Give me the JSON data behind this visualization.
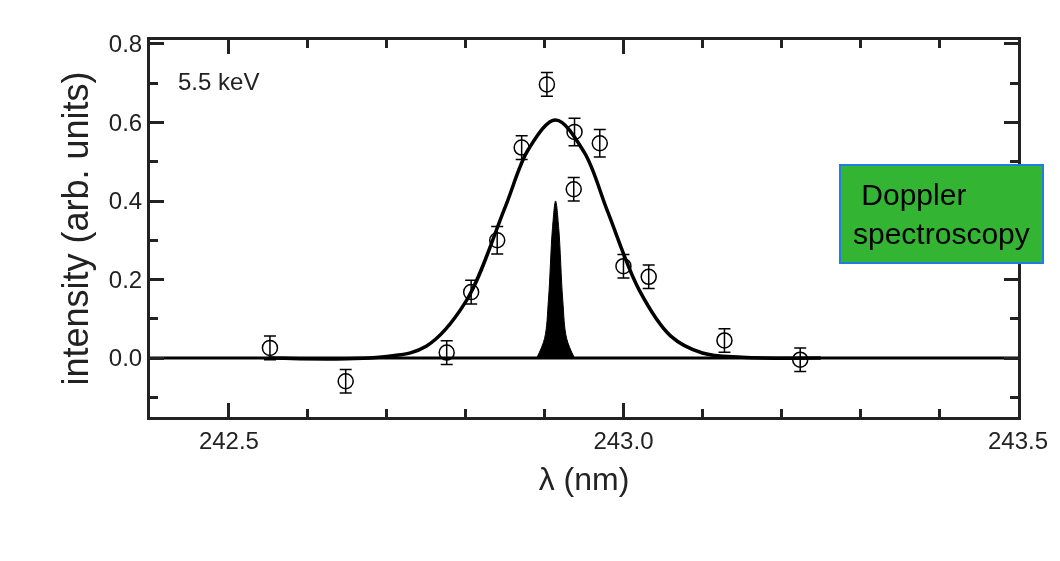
{
  "chart_data": {
    "type": "scatter",
    "xlabel": "λ (nm)",
    "ylabel": "intensity (arb. units)",
    "xlim": [
      242.4,
      243.5
    ],
    "xticks": [
      242.5,
      {
        "value": 243.0,
        "label": "243.0"
      },
      243.5
    ],
    "ylim": [
      -0.15,
      0.81
    ],
    "yticks": [
      {
        "value": 0,
        "label": "0.0"
      },
      0.2,
      0.4,
      0.6,
      0.8
    ],
    "grid": false,
    "marker": "circle",
    "ref_lines": [
      {
        "axis": "y",
        "value": 0,
        "color": "#000000",
        "line_style": "solid"
      }
    ],
    "annotations": [
      "5.5 keV",
      "Doppler spectroscopy"
    ],
    "series": [
      {
        "color": "#000000",
        "x": [
          242.552,
          242.648,
          242.776,
          242.807,
          242.84,
          242.871,
          242.903,
          242.938,
          242.937,
          242.97,
          243.0,
          243.032,
          243.128,
          243.224
        ],
        "values": [
          0.026,
          -0.059,
          0.014,
          0.168,
          0.3,
          0.536,
          0.697,
          0.576,
          0.43,
          0.547,
          0.234,
          0.207,
          0.045,
          -0.004
        ],
        "errors": [
          0.03,
          0.03,
          0.03,
          0.03,
          0.035,
          0.03,
          0.03,
          0.035,
          0.03,
          0.035,
          0.03,
          0.03,
          0.03,
          0.03
        ]
      },
      {
        "type": "line",
        "color": "#000000",
        "marker": "none",
        "x": [
          242.55,
          242.7,
          242.75,
          242.8,
          242.85,
          242.88,
          242.914,
          242.95,
          242.98,
          243.02,
          243.06,
          243.1,
          243.15,
          243.25
        ],
        "values": [
          0,
          0.004,
          0.03,
          0.143,
          0.384,
          0.533,
          0.606,
          0.525,
          0.373,
          0.173,
          0.056,
          0.013,
          0.002,
          0
        ]
      },
      {
        "type": "area",
        "color": "#000000",
        "marker": "none",
        "x": [
          242.89,
          242.9,
          242.905,
          242.91,
          242.914,
          242.918,
          242.923,
          242.928,
          242.938
        ],
        "values": [
          0,
          0.05,
          0.15,
          0.33,
          0.4,
          0.33,
          0.15,
          0.05,
          0
        ]
      }
    ]
  }
}
